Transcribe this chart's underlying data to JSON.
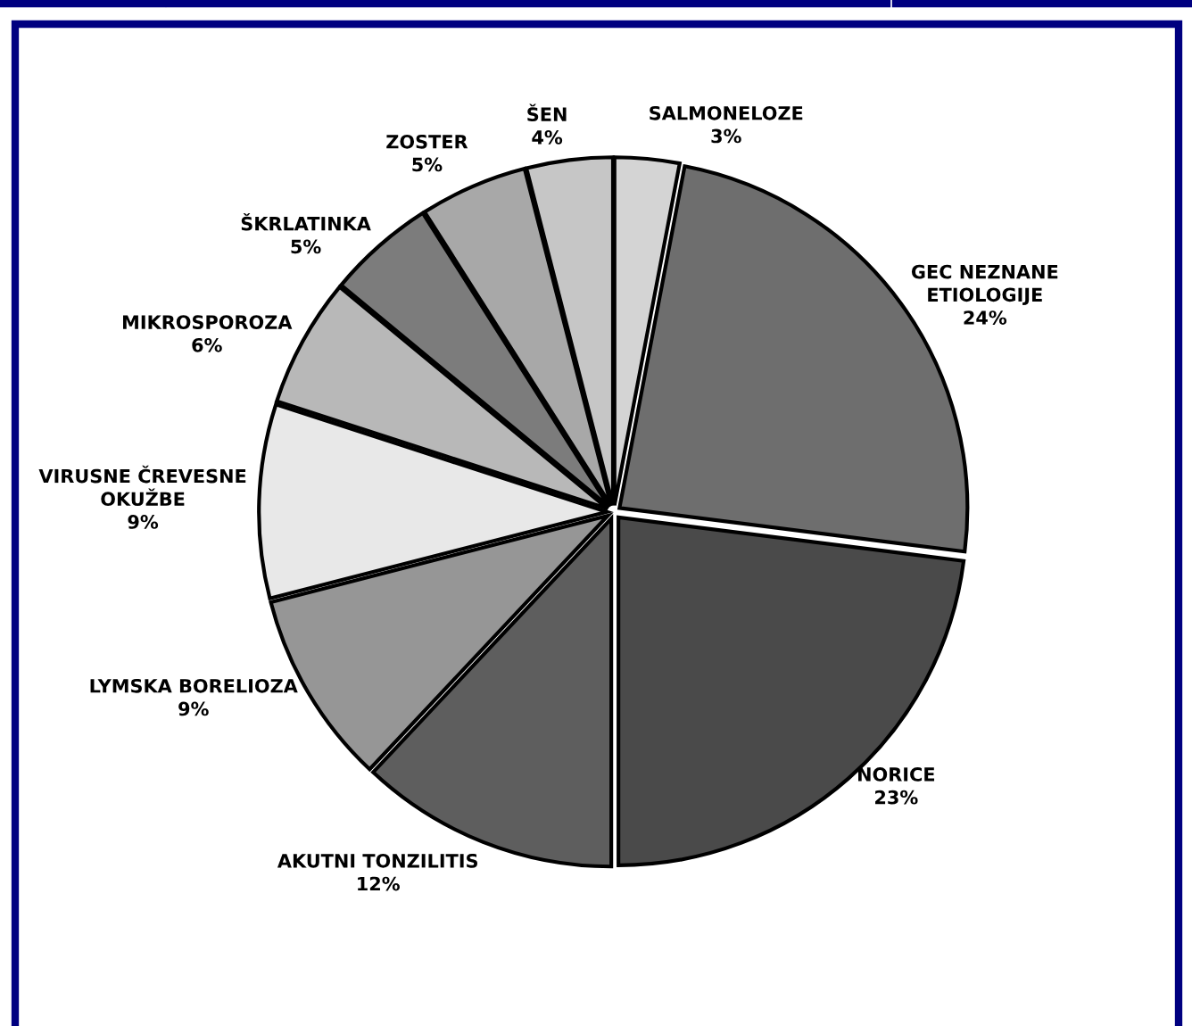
{
  "chart_data": {
    "type": "pie",
    "categories": [
      "SALMONELOZE",
      "GEC NEZNANE ETIOLOGIJE",
      "NORICE",
      "AKUTNI TONZILITIS",
      "LYMSKA BORELIOZA",
      "VIRUSNE ČREVESNE OKUŽBE",
      "MIKROSPOROZA",
      "ŠKRLATINKA",
      "ZOSTER",
      "ŠEN"
    ],
    "values": [
      3,
      24,
      23,
      12,
      9,
      9,
      6,
      5,
      5,
      4
    ],
    "value_labels": [
      "3%",
      "24%",
      "23%",
      "12%",
      "9%",
      "9%",
      "6%",
      "5%",
      "5%",
      "4%"
    ],
    "colors": [
      "#d4d4d4",
      "#6e6e6e",
      "#4a4a4a",
      "#5e5e5e",
      "#969696",
      "#e8e8e8",
      "#b8b8b8",
      "#7c7c7c",
      "#a8a8a8",
      "#c6c6c6"
    ]
  }
}
